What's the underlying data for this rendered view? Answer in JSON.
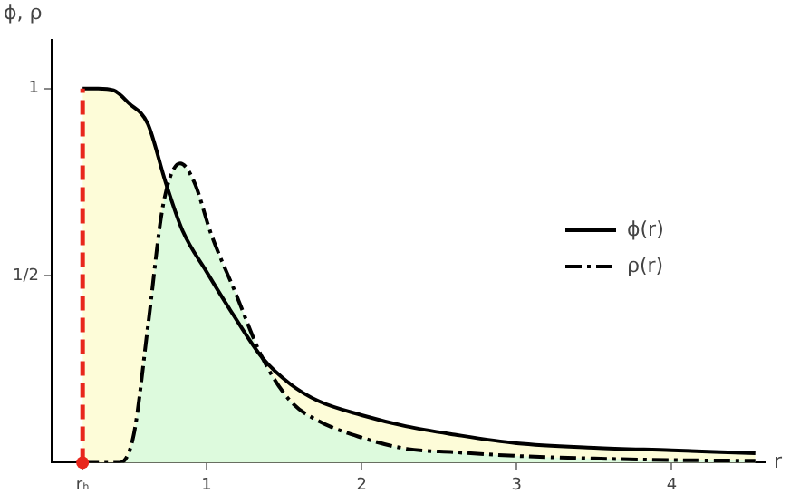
{
  "chart_data": {
    "type": "area",
    "ylabel": "ϕ, ρ",
    "xlabel": "r",
    "xlim": [
      0,
      4.6
    ],
    "ylim": [
      0,
      1.13
    ],
    "xticks": [
      {
        "value": 0.2,
        "label": "rₕ"
      },
      1,
      2,
      3,
      4
    ],
    "yticks": [
      {
        "value": 0.5,
        "label": "1/2"
      },
      1
    ],
    "grid": false,
    "legend": "right",
    "marker": "none",
    "ref_lines": [
      {
        "axis": "x",
        "value": 0.2,
        "color": "#e8261c",
        "line_style": "dashed"
      }
    ],
    "series": [
      {
        "name": "ϕ(r)",
        "type": "area",
        "color": "#fdfcd8",
        "line_style": "solid",
        "x": [
          0.2,
          0.3,
          0.4,
          0.5,
          0.62,
          0.735,
          0.845,
          1.0,
          1.18,
          1.36,
          1.54,
          1.72,
          2.0,
          2.29,
          2.6,
          3.0,
          3.5,
          4.0,
          4.54
        ],
        "values": [
          1,
          1,
          0.995,
          0.96,
          0.906,
          0.75,
          0.62,
          0.51,
          0.39,
          0.28,
          0.21,
          0.165,
          0.127,
          0.097,
          0.075,
          0.052,
          0.04,
          0.033,
          0.025
        ]
      },
      {
        "name": "ρ(r)",
        "type": "area",
        "color": "#ddfadd",
        "line_style": "dashed",
        "x": [
          0.2,
          0.44,
          0.53,
          0.62,
          0.72,
          0.83,
          0.92,
          1.03,
          1.18,
          1.36,
          1.54,
          1.72,
          2.0,
          2.29,
          2.6,
          3.0,
          3.5,
          4.0,
          4.54
        ],
        "values": [
          0,
          0,
          0.075,
          0.36,
          0.69,
          0.8,
          0.75,
          0.61,
          0.46,
          0.28,
          0.165,
          0.112,
          0.067,
          0.037,
          0.028,
          0.018,
          0.011,
          0.007,
          0.005
        ]
      }
    ]
  }
}
